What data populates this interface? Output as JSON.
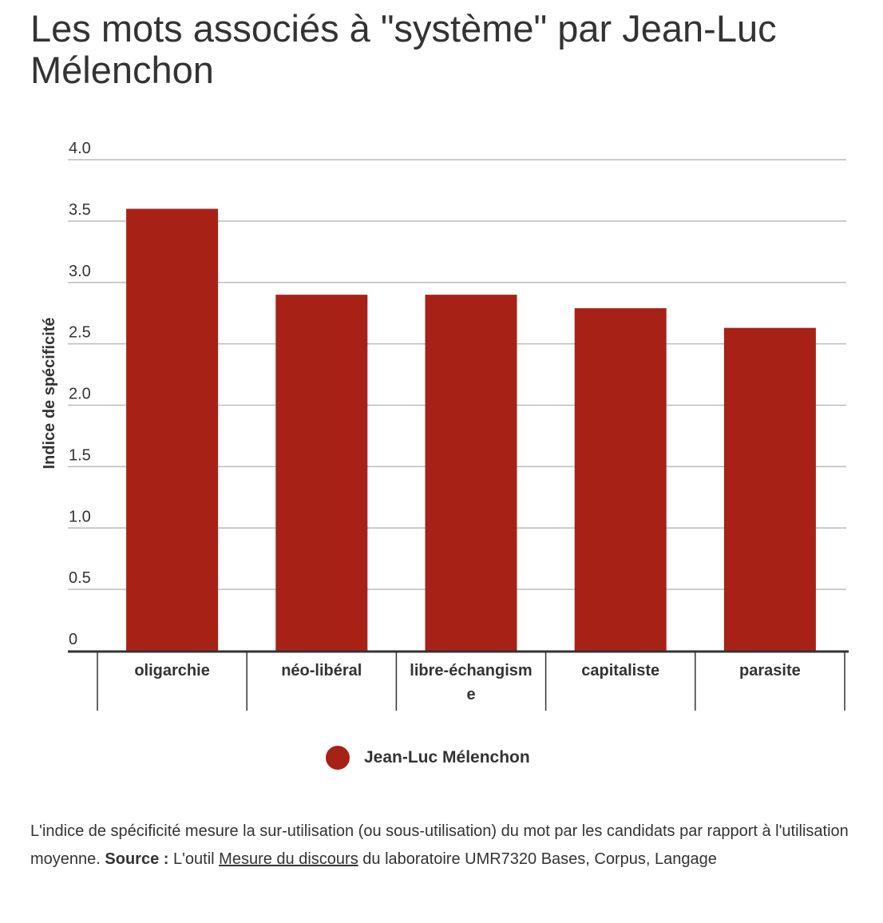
{
  "title": "Les mots associés à \"système\" par Jean-Luc Mélenchon",
  "chart_data": {
    "type": "bar",
    "categories": [
      "oligarchie",
      "néo-libéral",
      "libre-échangisme",
      "capitaliste",
      "parasite"
    ],
    "category_lines": [
      [
        "oligarchie"
      ],
      [
        "néo-libéral"
      ],
      [
        "libre-échangism",
        "e"
      ],
      [
        "capitaliste"
      ],
      [
        "parasite"
      ]
    ],
    "series": [
      {
        "name": "Jean-Luc Mélenchon",
        "values": [
          3.6,
          2.9,
          2.9,
          2.79,
          2.63
        ]
      }
    ],
    "ylabel": "Indice de spécificité",
    "xlabel": "",
    "ylim": [
      0,
      4.0
    ],
    "yticks": [
      0,
      0.5,
      1.0,
      1.5,
      2.0,
      2.5,
      3.0,
      3.5,
      4.0
    ],
    "ytick_labels": [
      "0",
      "0.5",
      "1.0",
      "1.5",
      "2.0",
      "2.5",
      "3.0",
      "3.5",
      "4.0"
    ],
    "grid": true,
    "legend_position": "bottom",
    "colors": {
      "bar": "#a82117",
      "grid": "#bbbbbb",
      "axis": "#333333"
    }
  },
  "footnote": {
    "text_before": "L'indice de spécificité mesure la sur-utilisation (ou sous-utilisation) du mot par les candidats par rapport à l'utilisation moyenne. ",
    "source_label": "Source :",
    "text_mid": " L'outil ",
    "link_text": "Mesure du discours",
    "text_after": " du laboratoire UMR7320 Bases, Corpus, Langage"
  }
}
